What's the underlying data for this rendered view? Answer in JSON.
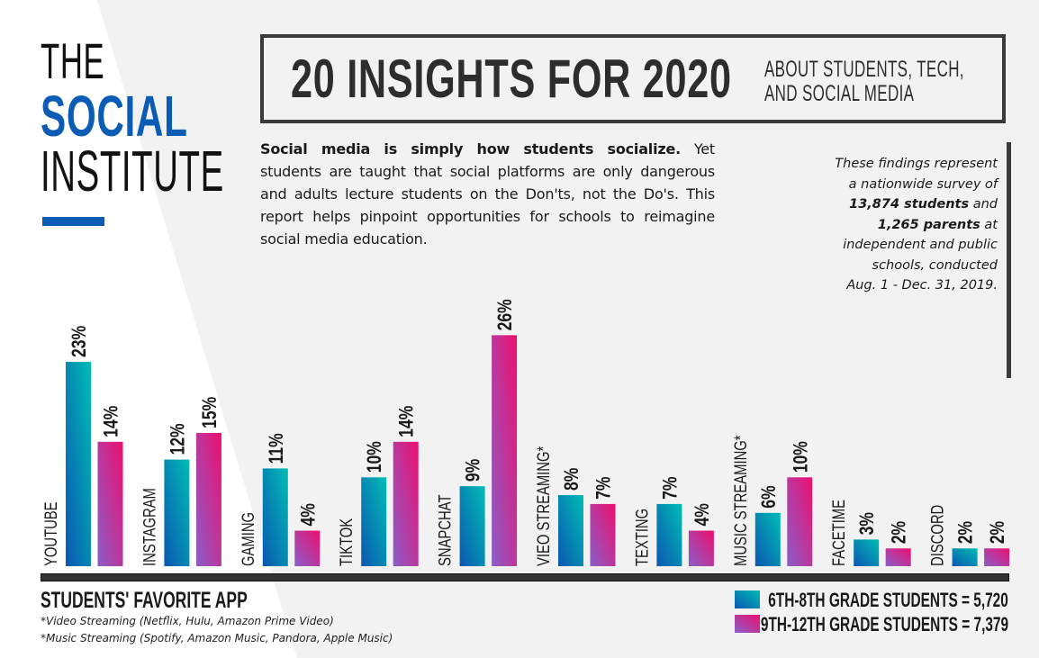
{
  "logo": {
    "line1": "THE",
    "line2": "SOCIAL",
    "line3": "INSTITUTE"
  },
  "header": {
    "title": "20 INSIGHTS FOR 2020",
    "subtitle_line1": "ABOUT STUDENTS, TECH,",
    "subtitle_line2": "AND SOCIAL MEDIA"
  },
  "intro": {
    "bold": "Social media is simply how students socialize.",
    "text": " Yet students are taught that social platforms are only dangerous and adults lecture students on the Don'ts, not the Do's. This report helps pinpoint opportunities for schools to reimagine social media education."
  },
  "survey_note": {
    "line1": "These findings represent",
    "line2": "a nationwide survey of",
    "students_bold": "13,874 students",
    "students_tail": " and",
    "parents_bold": "1,265 parents",
    "parents_tail": " at",
    "line5": "independent and public",
    "line6": "schools, conducted",
    "line7": "Aug. 1 - Dec. 31, 2019."
  },
  "footnotes": {
    "video": "*Video Streaming (Netflix, Hulu, Amazon Prime Video)",
    "music": "*Music Streaming (Spotify, Amazon Music, Pandora, Apple Music)"
  },
  "colors": {
    "brand_blue": "#0b5cb5",
    "teal_top": "#00bdb5",
    "teal_bottom": "#0a57b0",
    "pink_top": "#ee0f6f",
    "pink_bottom": "#8a5ec8",
    "dark": "#333333"
  },
  "chart_data": {
    "type": "bar",
    "title": "STUDENTS' FAVORITE APP",
    "xlabel": "",
    "ylabel": "",
    "ylim": [
      0,
      26
    ],
    "grid": false,
    "legend_position": "bottom-right",
    "categories": [
      "YOUTUBE",
      "INSTAGRAM",
      "GAMING",
      "TIKTOK",
      "SNAPCHAT",
      "VIEO STREAMING*",
      "TEXTING",
      "MUSIC STREAMING*",
      "FACETIME",
      "DISCORD"
    ],
    "series": [
      {
        "name": "6TH-8TH GRADE STUDENTS = 5,720",
        "values": [
          23,
          12,
          11,
          10,
          9,
          8,
          7,
          6,
          3,
          2
        ],
        "labels": [
          "23%",
          "12%",
          "11%",
          "10%",
          "9%",
          "8%",
          "7%",
          "6%",
          "3%",
          "2%"
        ]
      },
      {
        "name": "9TH-12TH GRADE STUDENTS = 7,379",
        "values": [
          14,
          15,
          4,
          14,
          26,
          7,
          4,
          10,
          2,
          2
        ],
        "labels": [
          "14%",
          "15%",
          "4%",
          "14%",
          "26%",
          "7%",
          "4%",
          "10%",
          "2%",
          "2%"
        ]
      }
    ]
  }
}
